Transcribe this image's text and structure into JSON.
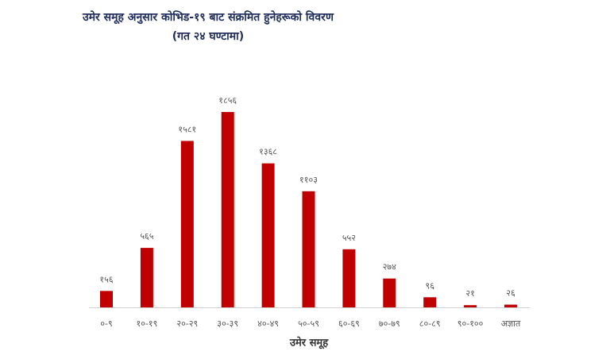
{
  "chart_data": {
    "type": "bar",
    "title": "उमेर समूह अनुसार कोभिड-१९ बाट संक्रमित हुनेहरूको विवरण",
    "subtitle": "(गत २४ घण्टामा)",
    "x_label": "उमेर समूह",
    "categories": [
      "०-९",
      "१०-१९",
      "२०-२९",
      "३०-३९",
      "४०-४९",
      "५०-५९",
      "६०-६९",
      "७०-७९",
      "८०-८९",
      "९०-१००",
      "अज्ञात"
    ],
    "values": [
      156,
      565,
      1581,
      1856,
      1368,
      1103,
      552,
      274,
      96,
      21,
      26
    ],
    "value_labels": [
      "१५६",
      "५६५",
      "१५८१",
      "१८५६",
      "१३६८",
      "११०३",
      "५५२",
      "२७४",
      "९६",
      "२१",
      "२६"
    ],
    "color": "#c00000"
  }
}
